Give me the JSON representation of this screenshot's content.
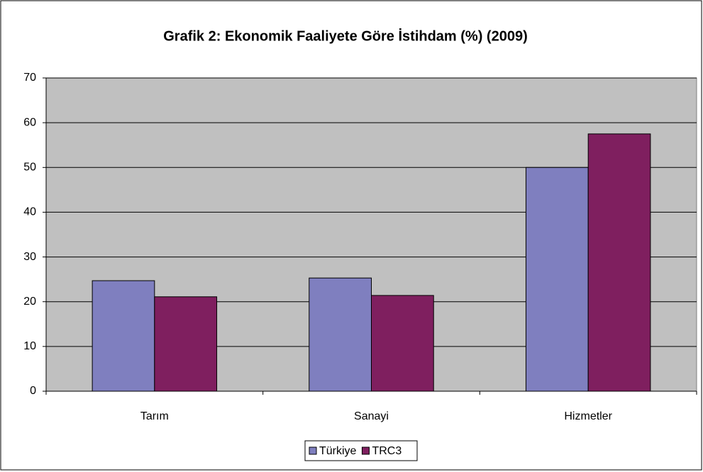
{
  "chart_data": {
    "type": "bar",
    "title": "Grafik 2: Ekonomik Faaliyete Göre İstihdam (%) (2009)",
    "categories": [
      "Tarım",
      "Sanayi",
      "Hizmetler"
    ],
    "series": [
      {
        "name": "Türkiye",
        "color": "#7f7fbf",
        "values": [
          24.7,
          25.3,
          50.0
        ]
      },
      {
        "name": "TRC3",
        "color": "#7f1f5f",
        "values": [
          21.1,
          21.4,
          57.5
        ]
      }
    ],
    "ylim": [
      0,
      70
    ],
    "yticks": [
      0,
      10,
      20,
      30,
      40,
      50,
      60,
      70
    ],
    "grid": true,
    "legend": "bottom"
  }
}
